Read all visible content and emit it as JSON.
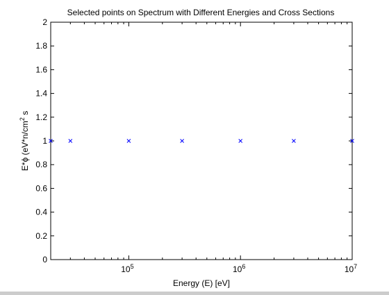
{
  "chart_data": {
    "type": "scatter",
    "title": "Selected points on Spectrum with Different Energies and Cross Sections",
    "xlabel": "Energy (E) [eV]",
    "ylabel_parts": {
      "main": "E*ϕ (eV*n/cm",
      "superscript": "2",
      "tail": " s"
    },
    "x_scale": "log",
    "xlim": [
      20000,
      10000000
    ],
    "ylim": [
      0,
      2
    ],
    "x_ticks": [
      {
        "value": 100000,
        "base": "10",
        "exponent": "5"
      },
      {
        "value": 1000000,
        "base": "10",
        "exponent": "6"
      },
      {
        "value": 10000000,
        "base": "10",
        "exponent": "7"
      }
    ],
    "y_ticks": [
      0,
      0.2,
      0.4,
      0.6,
      0.8,
      1,
      1.2,
      1.4,
      1.6,
      1.8,
      2
    ],
    "y_tick_labels": [
      "0",
      "0.2",
      "0.4",
      "0.6",
      "0.8",
      "1",
      "1.2",
      "1.4",
      "1.6",
      "1.8",
      "2"
    ],
    "grid": false,
    "marker": "x",
    "marker_color": "#0000ff",
    "points": [
      {
        "x": 20000,
        "y": 1
      },
      {
        "x": 30000,
        "y": 1
      },
      {
        "x": 100000,
        "y": 1
      },
      {
        "x": 300000,
        "y": 1
      },
      {
        "x": 1000000,
        "y": 1
      },
      {
        "x": 3000000,
        "y": 1
      },
      {
        "x": 10000000,
        "y": 1
      }
    ]
  }
}
